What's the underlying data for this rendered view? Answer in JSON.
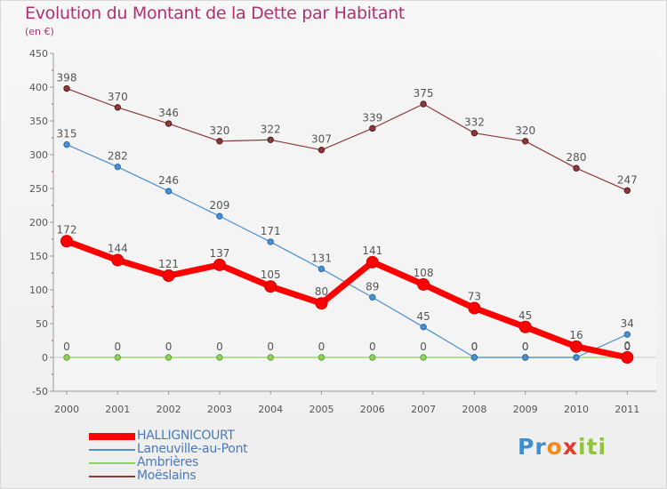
{
  "title": "Evolution du Montant de la Dette par Habitant",
  "subtitle": "(en €)",
  "logo": {
    "letters": [
      "P",
      "r",
      "o",
      "x",
      "i",
      "t",
      "i"
    ],
    "colors": [
      "#3e8fd1",
      "#3e8fd1",
      "#f08a1c",
      "#e23a2c",
      "#8fc43c",
      "#8fc43c",
      "#8fc43c"
    ]
  },
  "chart_data": {
    "type": "line",
    "title": "Evolution du Montant de la Dette par Habitant",
    "ylabel": "(en €)",
    "x": [
      "2000",
      "2001",
      "2002",
      "2003",
      "2004",
      "2005",
      "2006",
      "2007",
      "2008",
      "2009",
      "2010",
      "2011"
    ],
    "ylim": [
      -50,
      450
    ],
    "yticks": [
      -50,
      0,
      50,
      100,
      150,
      200,
      250,
      300,
      350,
      400,
      450
    ],
    "grid": false,
    "legend_position": "bottom-left",
    "series": [
      {
        "name": "HALLIGNICOURT",
        "color": "#ff0000",
        "values": [
          172,
          144,
          121,
          137,
          105,
          80,
          141,
          108,
          73,
          45,
          16,
          0
        ],
        "labels": [
          "172",
          "144",
          "121",
          "137",
          "105",
          "80",
          "141",
          "108",
          "73",
          "45",
          "16",
          "0"
        ]
      },
      {
        "name": "Laneuville-au-Pont",
        "color": "#4a90d0",
        "values": [
          315,
          282,
          246,
          209,
          171,
          131,
          89,
          45,
          0,
          0,
          0,
          34
        ],
        "labels": [
          "315",
          "282",
          "246",
          "209",
          "171",
          "131",
          "89",
          "45",
          "0",
          "0",
          "",
          "34"
        ]
      },
      {
        "name": "Ambrières",
        "color": "#8ed25a",
        "values": [
          0,
          0,
          0,
          0,
          0,
          0,
          0,
          0,
          0,
          0,
          0,
          0
        ],
        "labels": [
          "0",
          "0",
          "0",
          "0",
          "0",
          "0",
          "0",
          "0",
          "0",
          "0",
          "0",
          "0"
        ]
      },
      {
        "name": "Moëslains",
        "color": "#8b3a3a",
        "values": [
          398,
          370,
          346,
          320,
          322,
          307,
          339,
          375,
          332,
          320,
          280,
          247
        ],
        "labels": [
          "398",
          "370",
          "346",
          "320",
          "322",
          "307",
          "339",
          "375",
          "332",
          "320",
          "280",
          "247"
        ]
      }
    ]
  }
}
